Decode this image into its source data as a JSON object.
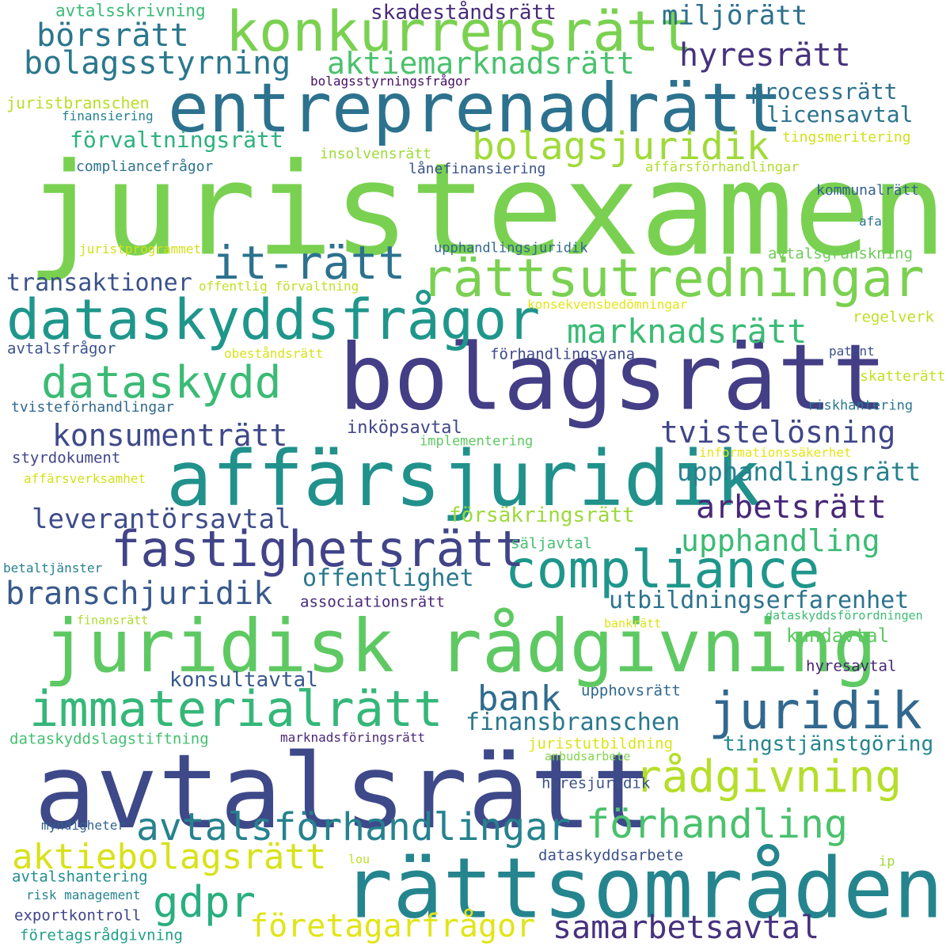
{
  "words": [
    {
      "text": "juristexamen",
      "color": "#7ad151"
    },
    {
      "text": "avtalsrätt",
      "color": "#3e4989"
    },
    {
      "text": "bolagsrätt",
      "color": "#433e85"
    },
    {
      "text": "rättsområden",
      "color": "#25858e"
    },
    {
      "text": "affärsjuridik",
      "color": "#21918c"
    },
    {
      "text": "juridisk rådgivning",
      "color": "#5ec962"
    },
    {
      "text": "entreprenadrätt",
      "color": "#2c728e"
    },
    {
      "text": "konkurrensrätt",
      "color": "#7ad151"
    },
    {
      "text": "dataskyddsfrågor",
      "color": "#1f968b"
    },
    {
      "text": "rättsutredningar",
      "color": "#7ad151"
    },
    {
      "text": "compliance",
      "color": "#1f968b"
    },
    {
      "text": "fastighetsrätt",
      "color": "#414487"
    },
    {
      "text": "immaterialrätt",
      "color": "#35b779"
    },
    {
      "text": "it-rätt",
      "color": "#2c728e"
    },
    {
      "text": "dataskydd",
      "color": "#3bbb75"
    },
    {
      "text": "juridik",
      "color": "#31688e"
    },
    {
      "text": "bolagsjuridik",
      "color": "#a0da39"
    },
    {
      "text": "avtalsförhandlingar",
      "color": "#26828e"
    },
    {
      "text": "rådgivning",
      "color": "#b5de2b"
    },
    {
      "text": "förhandling",
      "color": "#4ac16d"
    },
    {
      "text": "aktiebolagsrätt",
      "color": "#d8e219"
    },
    {
      "text": "gdpr",
      "color": "#29af7f"
    },
    {
      "text": "marknadsrätt",
      "color": "#3bbb75"
    },
    {
      "text": "företagarfrågor",
      "color": "#e2e418"
    },
    {
      "text": "samarbetsavtal",
      "color": "#46327e"
    },
    {
      "text": "börsrätt",
      "color": "#2a768e"
    },
    {
      "text": "bolagsstyrning",
      "color": "#2a788e"
    },
    {
      "text": "aktiemarknadsrätt",
      "color": "#4ac16d"
    },
    {
      "text": "hyresrätt",
      "color": "#46327e"
    },
    {
      "text": "miljörätt",
      "color": "#2d708e"
    },
    {
      "text": "konsumenträtt",
      "color": "#3e4989"
    },
    {
      "text": "tvistelösning",
      "color": "#404688"
    },
    {
      "text": "arbetsrätt",
      "color": "#482878"
    },
    {
      "text": "branschjuridik",
      "color": "#38598c"
    },
    {
      "text": "bank",
      "color": "#2f6c8e"
    },
    {
      "text": "leverantörsavtal",
      "color": "#3e4c8a"
    },
    {
      "text": "upphandling",
      "color": "#3bbb75"
    },
    {
      "text": "transaktioner",
      "color": "#3b528b"
    },
    {
      "text": "upphandlingsrätt",
      "color": "#27808e"
    },
    {
      "text": "förvaltningsrätt",
      "color": "#2db27d"
    },
    {
      "text": "processrätt",
      "color": "#2d708e"
    },
    {
      "text": "licensavtal",
      "color": "#2c738e"
    },
    {
      "text": "skadeståndsrätt",
      "color": "#472c7a"
    },
    {
      "text": "utbildningserfarenhet",
      "color": "#2c738e"
    },
    {
      "text": "offentlighet",
      "color": "#2a788e"
    },
    {
      "text": "finansbranschen",
      "color": "#2a788e"
    },
    {
      "text": "tingstjänstgöring",
      "color": "#24868e"
    },
    {
      "text": "konsultavtal",
      "color": "#38598c"
    },
    {
      "text": "försäkringsrätt",
      "color": "#9dd93b"
    },
    {
      "text": "inköpsavtal",
      "color": "#404688"
    },
    {
      "text": "kundavtal",
      "color": "#5ec962"
    },
    {
      "text": "avtalsskrivning",
      "color": "#3aba76"
    },
    {
      "text": "juristbranschen",
      "color": "#b8de29"
    },
    {
      "text": "finansiering",
      "color": "#26828e"
    },
    {
      "text": "bolagsstyrningsfrågor",
      "color": "#471063"
    },
    {
      "text": "insolvensrätt",
      "color": "#9fda3a"
    },
    {
      "text": "compliancefrågor",
      "color": "#2c728e"
    },
    {
      "text": "lånefinansiering",
      "color": "#3b528b"
    },
    {
      "text": "affärsförhandlingar",
      "color": "#b0dd2f"
    },
    {
      "text": "tingsmeritering",
      "color": "#d0e11c"
    },
    {
      "text": "kommunalrätt",
      "color": "#33628d"
    },
    {
      "text": "afa",
      "color": "#2a768e"
    },
    {
      "text": "juristprogrammet",
      "color": "#d0e11c"
    },
    {
      "text": "upphandlingsjuridik",
      "color": "#31688e"
    },
    {
      "text": "avtalsgranskning",
      "color": "#6ccd5a"
    },
    {
      "text": "offentlig förvaltning",
      "color": "#c2df23"
    },
    {
      "text": "konsekvensbedömningar",
      "color": "#e5e419"
    },
    {
      "text": "regelverk",
      "color": "#bddf26"
    },
    {
      "text": "avtalsfrågor",
      "color": "#3b528b"
    },
    {
      "text": "obeståndsrätt",
      "color": "#d8e219"
    },
    {
      "text": "förhandlingsvana",
      "color": "#3e4989"
    },
    {
      "text": "patent",
      "color": "#3b528b"
    },
    {
      "text": "skatterätt",
      "color": "#c5e021"
    },
    {
      "text": "tvisteförhandlingar",
      "color": "#31688e"
    },
    {
      "text": "riskhantering",
      "color": "#2a788e"
    },
    {
      "text": "implementering",
      "color": "#5ec962"
    },
    {
      "text": "styrdokument",
      "color": "#414487"
    },
    {
      "text": "informationssäkerhet",
      "color": "#e5e419"
    },
    {
      "text": "affärsverksamhet",
      "color": "#d2e21b"
    },
    {
      "text": "säljavtal",
      "color": "#44bf70"
    },
    {
      "text": "betaltjänster",
      "color": "#27808e"
    },
    {
      "text": "associationsrätt",
      "color": "#482878"
    },
    {
      "text": "finansrätt",
      "color": "#addc30"
    },
    {
      "text": "bankrätt",
      "color": "#dde318"
    },
    {
      "text": "dataskyddsförordningen",
      "color": "#3dbc74"
    },
    {
      "text": "hyresavtal",
      "color": "#482475"
    },
    {
      "text": "upphovsrätt",
      "color": "#31688e"
    },
    {
      "text": "dataskyddslagstiftning",
      "color": "#44bf70"
    },
    {
      "text": "marknadsföringsrätt",
      "color": "#482878"
    },
    {
      "text": "juristutbildning",
      "color": "#dde318"
    },
    {
      "text": "anbudsarbete",
      "color": "#84d44b"
    },
    {
      "text": "hyresjuridik",
      "color": "#3b528b"
    },
    {
      "text": "myndigheter",
      "color": "#33628d"
    },
    {
      "text": "lou",
      "color": "#bddf26"
    },
    {
      "text": "ip",
      "color": "#a2da37"
    },
    {
      "text": "dataskyddsarbete",
      "color": "#3b528b"
    },
    {
      "text": "avtalshantering",
      "color": "#228d8d"
    },
    {
      "text": "risk management",
      "color": "#25848e"
    },
    {
      "text": "exportkontroll",
      "color": "#404688"
    },
    {
      "text": "företagsrådgivning",
      "color": "#1f9f88"
    }
  ]
}
